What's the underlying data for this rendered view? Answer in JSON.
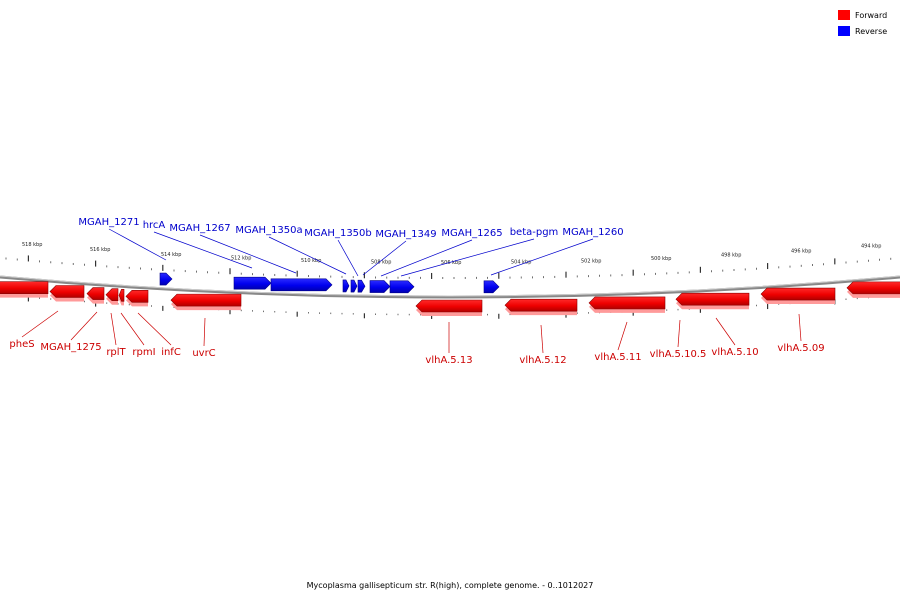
{
  "caption": "Mycoplasma gallisepticum str. R(high), complete genome. - 0..1012027",
  "legend": [
    {
      "label": "Forward",
      "color": "#ff0000"
    },
    {
      "label": "Reverse",
      "color": "#0000ff"
    }
  ],
  "colors": {
    "forward": "#ff0000",
    "forward_shade": "#ee0000",
    "forward_edge": "#8c0000",
    "reverse": "#0000ff",
    "reverse_edge": "#00008c",
    "label_forward": "#cc0000",
    "label_reverse": "#0000cc",
    "backbone": "#888888"
  },
  "kbp_labels": [
    "518 kbp",
    "516 kbp",
    "514 kbp",
    "512 kbp",
    "510 kbp",
    "508 kbp",
    "506 kbp",
    "504 kbp",
    "502 kbp",
    "500 kbp",
    "498 kbp",
    "496 kbp",
    "494 kbp"
  ],
  "reverse_genes": [
    "MGAH_1271",
    "hrcA",
    "MGAH_1267",
    "MGAH_1350a",
    "MGAH_1350b",
    "MGAH_1349",
    "MGAH_1265",
    "beta-pgm",
    "MGAH_1260"
  ],
  "forward_genes": [
    "pheS",
    "MGAH_1275",
    "rplT",
    "rpmI",
    "infC",
    "uvrC",
    "vlhA.5.13",
    "vlhA.5.12",
    "vlhA.5.11",
    "vlhA.5.10.5",
    "vlhA.5.10",
    "vlhA.5.09"
  ]
}
